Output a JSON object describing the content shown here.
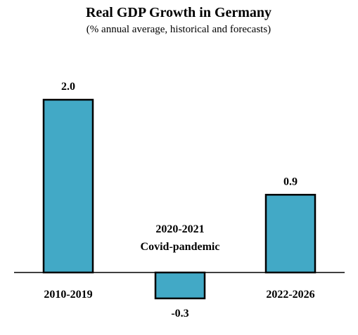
{
  "chart_data": {
    "type": "bar",
    "title": "Real GDP Growth in Germany",
    "subtitle": "(% annual average, historical and forecasts)",
    "categories": [
      "2010-2019",
      "2020-2021",
      "2022-2026"
    ],
    "values": [
      2.0,
      -0.3,
      0.9
    ],
    "value_labels": [
      "2.0",
      "-0.3",
      "0.9"
    ],
    "annotations": [
      {
        "category": "2020-2021",
        "lines": [
          "2020-2021",
          "Covid-pandemic"
        ]
      }
    ],
    "xlabel": "",
    "ylabel": "",
    "grid": false,
    "legend": "none",
    "colors": {
      "bar_fill": "#42a9c6",
      "bar_stroke": "#000000",
      "axis": "#000000",
      "text": "#000000"
    }
  }
}
